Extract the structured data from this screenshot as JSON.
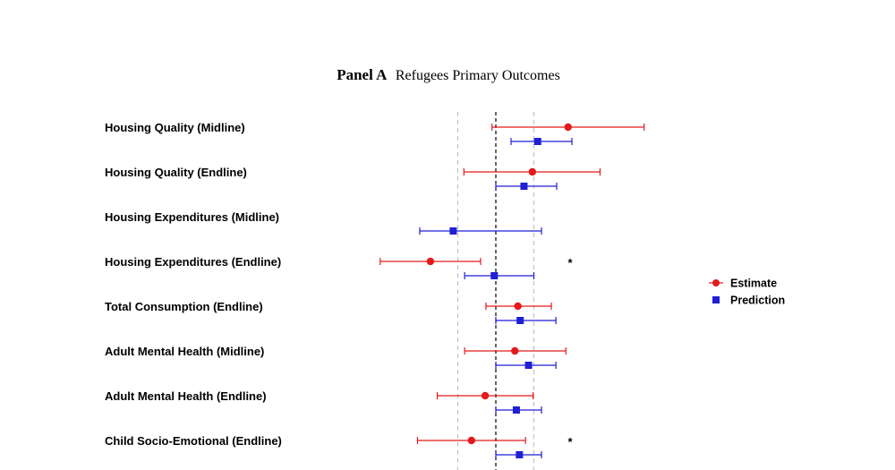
{
  "chart_data": {
    "type": "coefficient-plot",
    "title": {
      "bold": "Panel A",
      "regular": "Refugees Primary Outcomes"
    },
    "xlim": [
      -1.5,
      1.5
    ],
    "reference_lines": [
      {
        "value": 0,
        "style": "dashed-black"
      },
      {
        "value": -0.5,
        "style": "dashed-gray"
      },
      {
        "value": 0.5,
        "style": "dashed-gray"
      }
    ],
    "series": [
      {
        "name": "Estimate",
        "color": "#e31a1c",
        "marker": "circle"
      },
      {
        "name": "Prediction",
        "color": "#1f1fd6",
        "marker": "square"
      }
    ],
    "rows": [
      {
        "label": "Housing Quality (Midline)",
        "estimate": {
          "value": 0.95,
          "ci": [
            -0.05,
            1.95
          ]
        },
        "prediction": {
          "value": 0.55,
          "ci": [
            0.2,
            1.0
          ]
        },
        "sig": ""
      },
      {
        "label": "Housing Quality (Endline)",
        "estimate": {
          "value": 0.48,
          "ci": [
            -0.42,
            1.37
          ]
        },
        "prediction": {
          "value": 0.37,
          "ci": [
            0.0,
            0.8
          ]
        },
        "sig": ""
      },
      {
        "label": "Housing Expenditures (Midline)",
        "estimate": null,
        "prediction": {
          "value": -0.56,
          "ci": [
            -1.0,
            0.6
          ]
        },
        "sig": ""
      },
      {
        "label": "Housing Expenditures (Endline)",
        "estimate": {
          "value": -0.86,
          "ci": [
            -1.52,
            -0.2
          ]
        },
        "prediction": {
          "value": -0.02,
          "ci": [
            -0.41,
            0.5
          ]
        },
        "sig": "*"
      },
      {
        "label": "Total Consumption (Endline)",
        "estimate": {
          "value": 0.29,
          "ci": [
            -0.13,
            0.73
          ]
        },
        "prediction": {
          "value": 0.32,
          "ci": [
            0.0,
            0.79
          ]
        },
        "sig": ""
      },
      {
        "label": "Adult Mental Health (Midline)",
        "estimate": {
          "value": 0.25,
          "ci": [
            -0.41,
            0.92
          ]
        },
        "prediction": {
          "value": 0.43,
          "ci": [
            0.0,
            0.79
          ]
        },
        "sig": ""
      },
      {
        "label": "Adult Mental Health (Endline)",
        "estimate": {
          "value": -0.14,
          "ci": [
            -0.77,
            0.49
          ]
        },
        "prediction": {
          "value": 0.27,
          "ci": [
            0.0,
            0.6
          ]
        },
        "sig": ""
      },
      {
        "label": "Child Socio-Emotional (Endline)",
        "estimate": {
          "value": -0.32,
          "ci": [
            -1.03,
            0.39
          ]
        },
        "prediction": {
          "value": 0.31,
          "ci": [
            0.0,
            0.6
          ]
        },
        "sig": "*"
      }
    ],
    "legend": {
      "position": "right",
      "entries": [
        "Estimate",
        "Prediction"
      ]
    }
  }
}
